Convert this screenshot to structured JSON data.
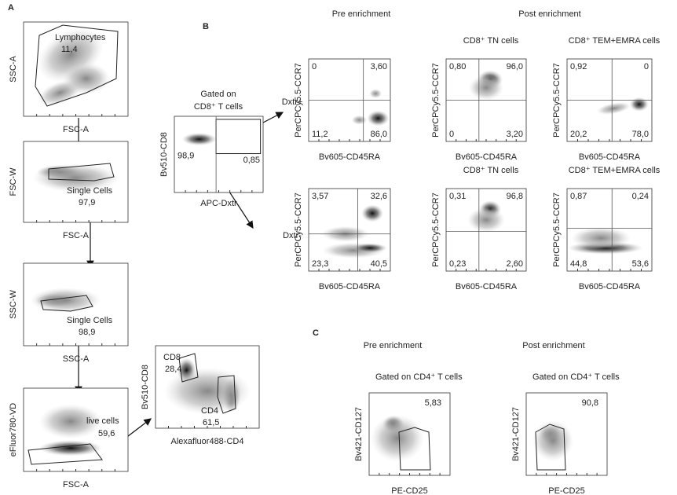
{
  "panel_labels": [
    "A",
    "B",
    "C"
  ],
  "A": {
    "plots": [
      {
        "y_label": "SSC-A",
        "x_label": "FSC-A",
        "gate_name": "Lymphocytes",
        "gate_value": "11,4"
      },
      {
        "y_label": "FSC-W",
        "x_label": "FSC-A",
        "gate_name": "Single Cells",
        "gate_value": "97,9"
      },
      {
        "y_label": "SSC-W",
        "x_label": "SSC-A",
        "gate_name": "Single Cells",
        "gate_value": "98,9"
      },
      {
        "y_label": "eFluor780-VD",
        "x_label": "FSC-A",
        "gate_name": "live cells",
        "gate_value": "59,6"
      },
      {
        "y_label": "Bv510-CD8",
        "x_label": "Alexafluor488-CD4",
        "gates": [
          {
            "name": "CD8",
            "value": "28,4"
          },
          {
            "name": "CD4",
            "value": "61,5"
          }
        ]
      }
    ]
  },
  "B": {
    "pre_header": "Pre enrichment",
    "post_header": "Post enrichment",
    "gating": {
      "title_lines": [
        "Gated on",
        "CD8⁺ T cells"
      ],
      "y_label": "Bv510-CD8",
      "x_label": "APC-Dxtr",
      "values": [
        "98,9",
        "0,85"
      ]
    },
    "rows": [
      {
        "label": "Dxtr+",
        "plots": [
          {
            "y_label": "PerCPCy5.5-CCR7",
            "x_label": "Bv605-CD45RA",
            "quadrants": [
              "0",
              "3,60",
              "11,2",
              "86,0"
            ]
          },
          {
            "title": "CD8⁺ TN cells",
            "y_label": "PerCPCy5.5-CCR7",
            "x_label": "Bv605-CD45RA",
            "quadrants": [
              "0,80",
              "96,0",
              "0",
              "3,20"
            ]
          },
          {
            "title": "CD8⁺ TEM+EMRA cells",
            "y_label": "PerCPCy5.5-CCR7",
            "x_label": "Bv605-CD45RA",
            "quadrants": [
              "0,92",
              "0",
              "20,2",
              "78,0"
            ]
          }
        ]
      },
      {
        "label": "Dxtr-",
        "plots": [
          {
            "y_label": "PerCPCy5.5-CCR7",
            "x_label": "Bv605-CD45RA",
            "quadrants": [
              "3,57",
              "32,6",
              "23,3",
              "40,5"
            ]
          },
          {
            "title": "CD8⁺ TN cells",
            "y_label": "PerCPCy5.5-CCR7",
            "x_label": "Bv605-CD45RA",
            "quadrants": [
              "0,31",
              "96,8",
              "0,23",
              "2,60"
            ]
          },
          {
            "title": "CD8⁺ TEM+EMRA cells",
            "y_label": "PerCPCy5.5-CCR7",
            "x_label": "Bv605-CD45RA",
            "quadrants": [
              "0,87",
              "0,24",
              "44,8",
              "53,6"
            ]
          }
        ]
      }
    ]
  },
  "C": {
    "headers": [
      "Pre enrichment",
      "Post enrichment"
    ],
    "plots": [
      {
        "title": "Gated on CD4⁺ T cells",
        "y_label": "Bv421-CD127",
        "x_label": "PE-CD25",
        "value": "5,83"
      },
      {
        "title": "Gated on CD4⁺ T cells",
        "y_label": "Bv421-CD127",
        "x_label": "PE-CD25",
        "value": "90,8"
      }
    ]
  }
}
